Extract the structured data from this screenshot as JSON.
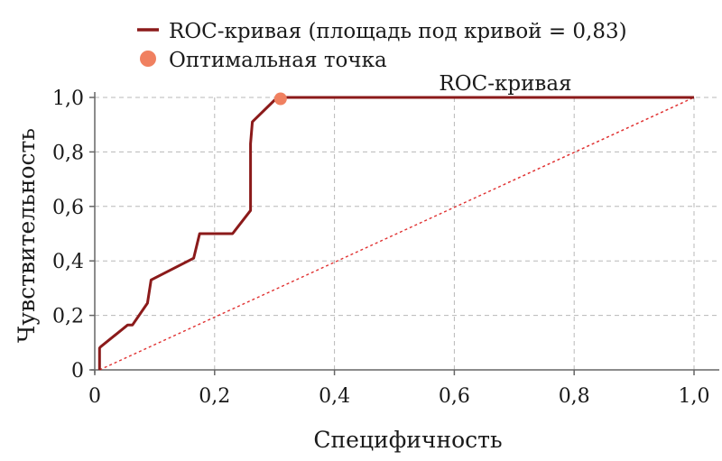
{
  "chart_data": {
    "type": "line",
    "title": "ROC-кривая",
    "xlabel": "Специфичность",
    "ylabel": "Чувствительность",
    "xlim": [
      0,
      1.0
    ],
    "ylim": [
      0,
      1.0
    ],
    "xticks": [
      0,
      0.2,
      0.4,
      0.6,
      0.8,
      1.0
    ],
    "yticks": [
      0,
      0.2,
      0.4,
      0.6,
      0.8,
      1.0
    ],
    "xtick_labels": [
      "0",
      "0,2",
      "0,4",
      "0,6",
      "0,8",
      "1,0"
    ],
    "ytick_labels": [
      "0",
      "0,2",
      "0,4",
      "0,6",
      "0,8",
      "1,0"
    ],
    "grid": true,
    "legend_position": "top",
    "series": [
      {
        "name": "ROC-кривая (площадь под кривой = 0,83)",
        "color": "#8b1a1a",
        "x": [
          0.008,
          0.008,
          0.01,
          0.055,
          0.063,
          0.088,
          0.094,
          0.165,
          0.175,
          0.23,
          0.26,
          0.26,
          0.263,
          0.265,
          0.3,
          0.31,
          1.0
        ],
        "y": [
          0.0,
          0.08,
          0.085,
          0.165,
          0.165,
          0.245,
          0.33,
          0.41,
          0.5,
          0.5,
          0.585,
          0.83,
          0.91,
          0.915,
          0.99,
          1.0,
          1.0
        ]
      }
    ],
    "reference_line": {
      "x": [
        0.008,
        1.0
      ],
      "y": [
        0.0,
        1.0
      ],
      "color": "#e03030",
      "style": "dotted"
    },
    "optimal_point": {
      "name": "Оптимальная точка",
      "x": 0.31,
      "y": 0.995,
      "color": "#f08060"
    }
  }
}
